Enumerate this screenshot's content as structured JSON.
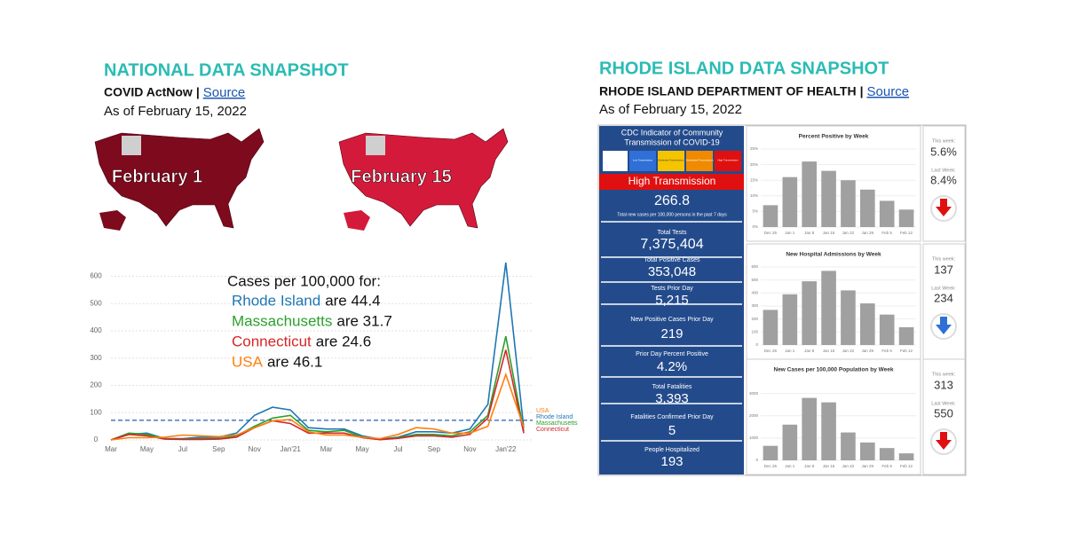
{
  "national": {
    "title": "NATIONAL DATA SNAPSHOT",
    "source_org": "COVID ActNow",
    "separator": "|",
    "source_link": "Source",
    "as_of": "As of February 15, 2022",
    "maps": [
      {
        "label": "February 1",
        "color": "#7d0a1d"
      },
      {
        "label": "February 15",
        "color": "#d41a3b"
      }
    ]
  },
  "rhode_island": {
    "title": "RHODE ISLAND DATA SNAPSHOT",
    "source_org": "RHODE ISLAND DEPARTMENT OF HEALTH",
    "separator": "|",
    "source_link": "Source",
    "as_of": "As of February 15, 2022",
    "indicator": {
      "title_lines": [
        "CDC Indicator of Community",
        "Transmission of COVID-19"
      ],
      "levels": [
        {
          "label": "Low Transmission",
          "color": "#2f6fd6"
        },
        {
          "label": "Moderate Transmission",
          "color": "#f5c400"
        },
        {
          "label": "Substantial Transmission",
          "color": "#f08a00"
        },
        {
          "label": "High Transmission",
          "color": "#e01010"
        }
      ],
      "status": "High Transmission",
      "rate": "266.8",
      "rate_note": "Total new cases per 100,000 persons in the past 7 days"
    },
    "stats": [
      {
        "label": "Total Tests",
        "value": "7,375,404"
      },
      {
        "label": "Total Positive Cases",
        "value": "353,048"
      },
      {
        "label": "Tests Prior Day",
        "value": "5,215"
      },
      {
        "label": "New Positive Cases Prior Day",
        "value": "219"
      },
      {
        "label": "Prior Day Percent Positive",
        "value": "4.2%"
      },
      {
        "label": "Total Fatalities",
        "value": "3,393"
      },
      {
        "label": "Fatalities Confirmed Prior Day",
        "value": "5"
      },
      {
        "label": "People Hospitalized",
        "value": "193"
      }
    ],
    "trends": [
      {
        "this_week_label": "This week:",
        "this_week": "5.6%",
        "last_week_label": "Last Week:",
        "last_week": "8.4%",
        "arrow_color": "#e01010"
      },
      {
        "this_week_label": "This week:",
        "this_week": "137",
        "last_week_label": "Last Week:",
        "last_week": "234",
        "arrow_color": "#2f6fd6"
      },
      {
        "this_week_label": "This week:",
        "this_week": "313",
        "last_week_label": "Last Week:",
        "last_week": "550",
        "arrow_color": "#e01010"
      }
    ]
  },
  "chart_data": [
    {
      "type": "line",
      "annotation_title": "Cases per 100,000 for:",
      "annotation_items": [
        "are 44.4",
        "are 31.7",
        "are 24.6",
        "are 46.1"
      ],
      "categories": [
        "Mar",
        null,
        "May",
        null,
        "Jul",
        null,
        "Sep",
        null,
        "Nov",
        null,
        "Jan'21",
        null,
        "Mar",
        null,
        "May",
        null,
        "Jul",
        null,
        "Sep",
        null,
        "Nov",
        null,
        "Jan'22",
        null
      ],
      "series": [
        {
          "name": "Rhode Island",
          "color": "#1f77b4",
          "values": [
            0,
            20,
            25,
            5,
            5,
            10,
            10,
            25,
            90,
            120,
            110,
            45,
            40,
            40,
            15,
            3,
            10,
            30,
            30,
            25,
            40,
            130,
            650,
            44.4
          ]
        },
        {
          "name": "Massachusetts",
          "color": "#2ca02c",
          "values": [
            0,
            25,
            20,
            5,
            3,
            5,
            5,
            15,
            50,
            80,
            90,
            35,
            30,
            35,
            10,
            2,
            8,
            20,
            20,
            15,
            30,
            90,
            380,
            31.7
          ]
        },
        {
          "name": "Connecticut",
          "color": "#d62728",
          "values": [
            0,
            20,
            15,
            3,
            2,
            2,
            3,
            10,
            45,
            70,
            60,
            25,
            25,
            25,
            8,
            1,
            6,
            15,
            15,
            10,
            20,
            80,
            330,
            24.6
          ]
        },
        {
          "name": "USA",
          "color": "#ff7f0e",
          "values": [
            0,
            8,
            8,
            10,
            18,
            15,
            12,
            18,
            45,
            70,
            75,
            30,
            18,
            18,
            10,
            5,
            20,
            45,
            40,
            25,
            25,
            50,
            240,
            46.1
          ]
        }
      ],
      "reference_line": 72,
      "ylim": [
        0,
        660
      ],
      "yticks": [
        0,
        100,
        200,
        300,
        400,
        500,
        600
      ],
      "grid": true
    },
    {
      "type": "bar",
      "title": "Percent Positive by Week",
      "categories": [
        "Dec 25",
        "Jan 1",
        "Jan 8",
        "Jan 15",
        "Jan 22",
        "Jan 29",
        "Feb 5",
        "Feb 12"
      ],
      "values": [
        7,
        16,
        21,
        18,
        15,
        12,
        8.4,
        5.6
      ],
      "color": "#a0a0a0",
      "ylim": [
        0,
        25
      ],
      "yticks": [
        {
          "value": 0,
          "label": "0%"
        },
        {
          "value": 5,
          "label": "5%"
        },
        {
          "value": 10,
          "label": "10%"
        },
        {
          "value": 15,
          "label": "15%"
        },
        {
          "value": 20,
          "label": "20%"
        },
        {
          "value": 25,
          "label": "25%"
        }
      ],
      "grid": true
    },
    {
      "type": "bar",
      "title": "New Hospital Admissions by Week",
      "categories": [
        "Dec 25",
        "Jan 1",
        "Jan 8",
        "Jan 15",
        "Jan 22",
        "Jan 29",
        "Feb 5",
        "Feb 12"
      ],
      "values": [
        270,
        390,
        490,
        570,
        420,
        320,
        234,
        137
      ],
      "color": "#a0a0a0",
      "ylim": [
        0,
        600
      ],
      "yticks": [
        0,
        100,
        200,
        300,
        400,
        500,
        600
      ],
      "grid": true
    },
    {
      "type": "bar",
      "title": "New Cases per 100,000 Population by Week",
      "categories": [
        "Dec 25",
        "Jan 1",
        "Jan 8",
        "Jan 15",
        "Jan 22",
        "Jan 29",
        "Feb 5",
        "Feb 12"
      ],
      "values": [
        650,
        1600,
        2800,
        2600,
        1250,
        800,
        550,
        313
      ],
      "color": "#a0a0a0",
      "ylim": [
        0,
        3500
      ],
      "yticks": [
        0,
        1000,
        2000,
        3000
      ],
      "grid": true
    }
  ]
}
